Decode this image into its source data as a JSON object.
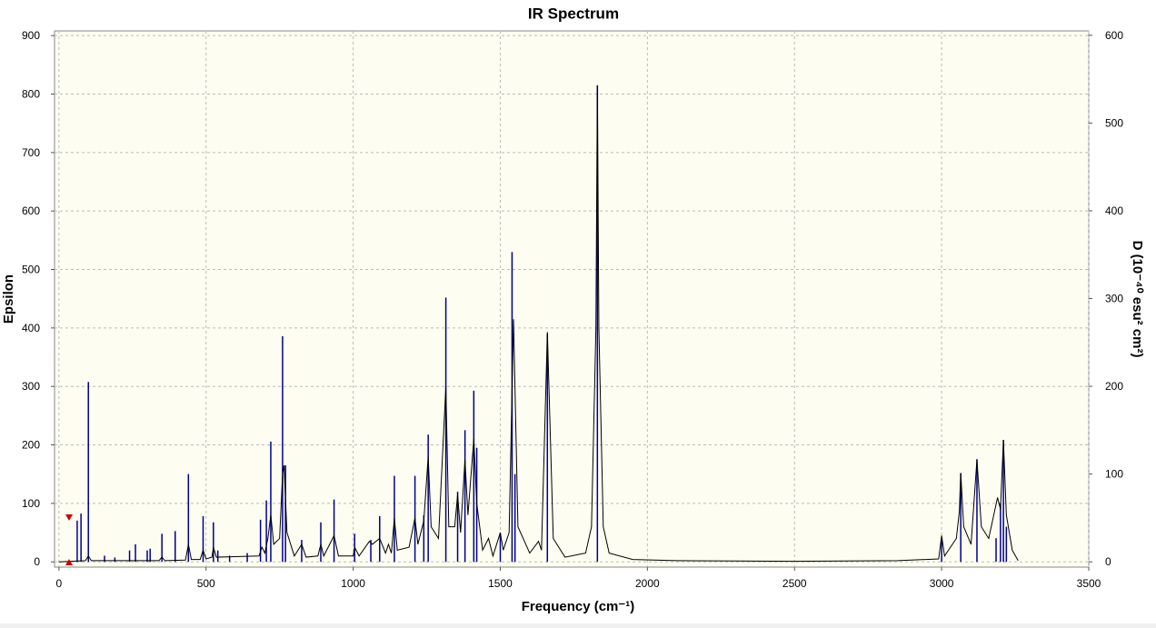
{
  "chart_data": {
    "type": "ir-spectrum",
    "title": "IR Spectrum",
    "xlabel": "Frequency (cm⁻¹)",
    "ylabel": "Epsilon",
    "y2label": "D (10⁻⁴⁰ esu² cm²)",
    "xlim": [
      -15,
      3500
    ],
    "xticks": [
      0,
      500,
      1000,
      1500,
      2000,
      2500,
      3000,
      3500
    ],
    "ylim": [
      -9,
      908
    ],
    "yticks": [
      0,
      100,
      200,
      300,
      400,
      500,
      600,
      700,
      800,
      900
    ],
    "y2lim": [
      -6,
      605
    ],
    "y2ticks": [
      0,
      100,
      200,
      300,
      400,
      500,
      600
    ],
    "grid": true,
    "spectrum": {
      "color": "#000000",
      "x": [
        0,
        90,
        100,
        110,
        340,
        350,
        360,
        430,
        440,
        450,
        480,
        490,
        500,
        520,
        525,
        535,
        680,
        690,
        700,
        710,
        720,
        730,
        750,
        760,
        765,
        775,
        800,
        825,
        840,
        880,
        890,
        900,
        935,
        950,
        1000,
        1005,
        1020,
        1055,
        1065,
        1090,
        1110,
        1120,
        1130,
        1140,
        1150,
        1190,
        1210,
        1220,
        1240,
        1255,
        1265,
        1290,
        1315,
        1325,
        1345,
        1355,
        1365,
        1380,
        1390,
        1410,
        1420,
        1440,
        1460,
        1475,
        1500,
        1510,
        1530,
        1545,
        1560,
        1600,
        1630,
        1640,
        1660,
        1680,
        1720,
        1790,
        1810,
        1825,
        1830,
        1835,
        1850,
        1870,
        1950,
        2100,
        2500,
        2850,
        2990,
        3000,
        3010,
        3050,
        3060,
        3065,
        3075,
        3100,
        3120,
        3135,
        3160,
        3190,
        3200,
        3210,
        3220,
        3240,
        3260
      ],
      "values": [
        0,
        2,
        10,
        2,
        2,
        8,
        2,
        3,
        30,
        4,
        4,
        20,
        5,
        8,
        25,
        8,
        10,
        25,
        15,
        40,
        80,
        30,
        40,
        150,
        165,
        50,
        10,
        30,
        8,
        10,
        30,
        10,
        45,
        10,
        10,
        25,
        10,
        35,
        30,
        40,
        15,
        30,
        15,
        75,
        20,
        25,
        75,
        30,
        70,
        180,
        60,
        40,
        300,
        60,
        60,
        115,
        50,
        175,
        80,
        210,
        100,
        20,
        40,
        10,
        50,
        20,
        50,
        415,
        60,
        15,
        35,
        20,
        393,
        40,
        8,
        15,
        60,
        400,
        815,
        400,
        60,
        15,
        4,
        2,
        1,
        2,
        5,
        45,
        10,
        40,
        85,
        152,
        60,
        30,
        175,
        60,
        40,
        110,
        90,
        208,
        80,
        20,
        2
      ]
    },
    "sticks": {
      "color": "#00008b",
      "axis": "y2",
      "x": [
        62,
        75,
        100,
        155,
        190,
        240,
        260,
        300,
        310,
        350,
        395,
        440,
        490,
        525,
        540,
        580,
        640,
        685,
        705,
        720,
        760,
        770,
        825,
        890,
        935,
        1005,
        1060,
        1090,
        1140,
        1210,
        1240,
        1255,
        1315,
        1355,
        1380,
        1410,
        1420,
        1500,
        1540,
        1550,
        1660,
        1830,
        3000,
        3065,
        3120,
        3185,
        3200,
        3210,
        3220
      ],
      "values": [
        47,
        55,
        205,
        7,
        5,
        13,
        20,
        13,
        15,
        32,
        35,
        100,
        52,
        45,
        13,
        7,
        10,
        48,
        70,
        137,
        257,
        110,
        25,
        45,
        71,
        32,
        25,
        52,
        98,
        98,
        53,
        145,
        301,
        80,
        150,
        195,
        130,
        33,
        353,
        100,
        260,
        543,
        27,
        101,
        117,
        27,
        67,
        139,
        40
      ]
    }
  }
}
